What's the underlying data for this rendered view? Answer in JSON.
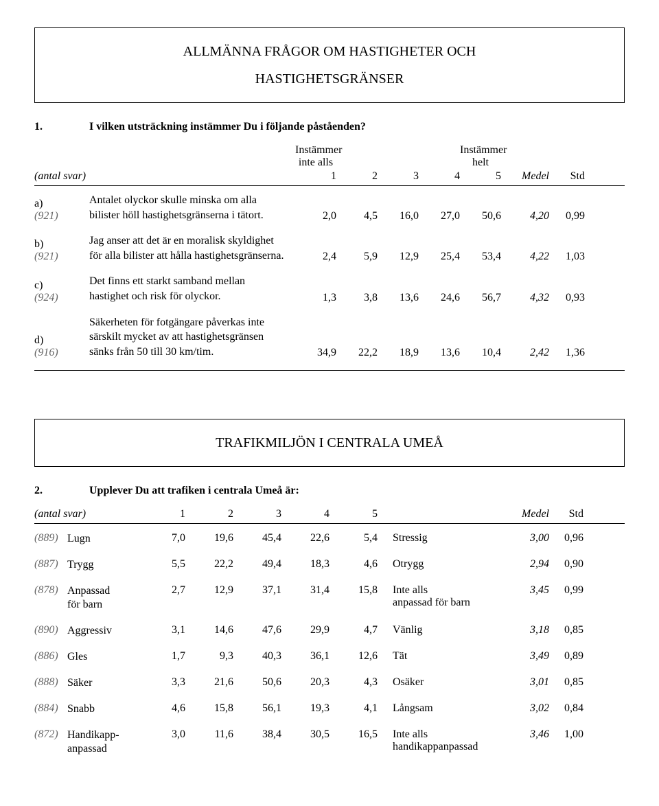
{
  "section1": {
    "box_title_l1": "ALLMÄNNA FRÅGOR OM HASTIGHETER OCH",
    "box_title_l2": "HASTIGHETSGRÄNSER",
    "q_num": "1.",
    "q_text": "I vilken utsträckning instämmer Du i följande påståenden?",
    "hdr_left": "Instämmer",
    "hdr_left2": "inte alls",
    "hdr_right": "Instämmer",
    "hdr_right2": "helt",
    "antal": "(antal svar)",
    "cols": {
      "c1": "1",
      "c2": "2",
      "c3": "3",
      "c4": "4",
      "c5": "5",
      "medel": "Medel",
      "std": "Std"
    },
    "rows": [
      {
        "id": "a)",
        "count": "(921)",
        "text_l1": "Antalet olyckor skulle minska om alla",
        "text_l2": "bilister höll hastighetsgränserna i tätort.",
        "v": [
          "2,0",
          "4,5",
          "16,0",
          "27,0",
          "50,6"
        ],
        "medel": "4,20",
        "std": "0,99"
      },
      {
        "id": "b)",
        "count": "(921)",
        "text_l1": "Jag anser att det är en moralisk skyldighet",
        "text_l2": "för alla bilister att hålla hastighetsgränserna.",
        "v": [
          "2,4",
          "5,9",
          "12,9",
          "25,4",
          "53,4"
        ],
        "medel": "4,22",
        "std": "1,03"
      },
      {
        "id": "c)",
        "count": "(924)",
        "text_l1": "Det finns ett starkt samband mellan",
        "text_l2": "hastighet och risk för olyckor.",
        "v": [
          "1,3",
          "3,8",
          "13,6",
          "24,6",
          "56,7"
        ],
        "medel": "4,32",
        "std": "0,93"
      },
      {
        "id": "d)",
        "count": "(916)",
        "text_l1": "Säkerheten för fotgängare påverkas inte",
        "text_l2": "särskilt mycket av att hastighetsgränsen",
        "text_l3": "sänks från 50 till 30 km/tim.",
        "v": [
          "34,9",
          "22,2",
          "18,9",
          "13,6",
          "10,4"
        ],
        "medel": "2,42",
        "std": "1,36"
      }
    ]
  },
  "section2": {
    "box_title": "TRAFIKMILJÖN I CENTRALA UMEÅ",
    "q_num": "2.",
    "q_text": "Upplever Du att trafiken i centrala Umeå är:",
    "antal": "(antal svar)",
    "cols": {
      "c1": "1",
      "c2": "2",
      "c3": "3",
      "c4": "4",
      "c5": "5",
      "medel": "Medel",
      "std": "Std"
    },
    "rows": [
      {
        "count": "(889)",
        "left": "Lugn",
        "v": [
          "7,0",
          "19,6",
          "45,4",
          "22,6",
          "5,4"
        ],
        "right": "Stressig",
        "medel": "3,00",
        "std": "0,96"
      },
      {
        "count": "(887)",
        "left": "Trygg",
        "v": [
          "5,5",
          "22,2",
          "49,4",
          "18,3",
          "4,6"
        ],
        "right": "Otrygg",
        "medel": "2,94",
        "std": "0,90"
      },
      {
        "count": "(878)",
        "left": "Anpassad",
        "left2": "för barn",
        "v": [
          "2,7",
          "12,9",
          "37,1",
          "31,4",
          "15,8"
        ],
        "right": "Inte alls",
        "right2": "anpassad för barn",
        "medel": "3,45",
        "std": "0,99"
      },
      {
        "count": "(890)",
        "left": "Aggressiv",
        "v": [
          "3,1",
          "14,6",
          "47,6",
          "29,9",
          "4,7"
        ],
        "right": "Vänlig",
        "medel": "3,18",
        "std": "0,85"
      },
      {
        "count": "(886)",
        "left": "Gles",
        "v": [
          "1,7",
          "9,3",
          "40,3",
          "36,1",
          "12,6"
        ],
        "right": "Tät",
        "medel": "3,49",
        "std": "0,89"
      },
      {
        "count": "(888)",
        "left": "Säker",
        "v": [
          "3,3",
          "21,6",
          "50,6",
          "20,3",
          "4,3"
        ],
        "right": "Osäker",
        "medel": "3,01",
        "std": "0,85"
      },
      {
        "count": "(884)",
        "left": "Snabb",
        "v": [
          "4,6",
          "15,8",
          "56,1",
          "19,3",
          "4,1"
        ],
        "right": "Långsam",
        "medel": "3,02",
        "std": "0,84"
      },
      {
        "count": "(872)",
        "left": "Handikapp-",
        "left2": "anpassad",
        "v": [
          "3,0",
          "11,6",
          "38,4",
          "30,5",
          "16,5"
        ],
        "right": "Inte alls",
        "right2": "handikappanpassad",
        "medel": "3,46",
        "std": "1,00"
      }
    ]
  }
}
